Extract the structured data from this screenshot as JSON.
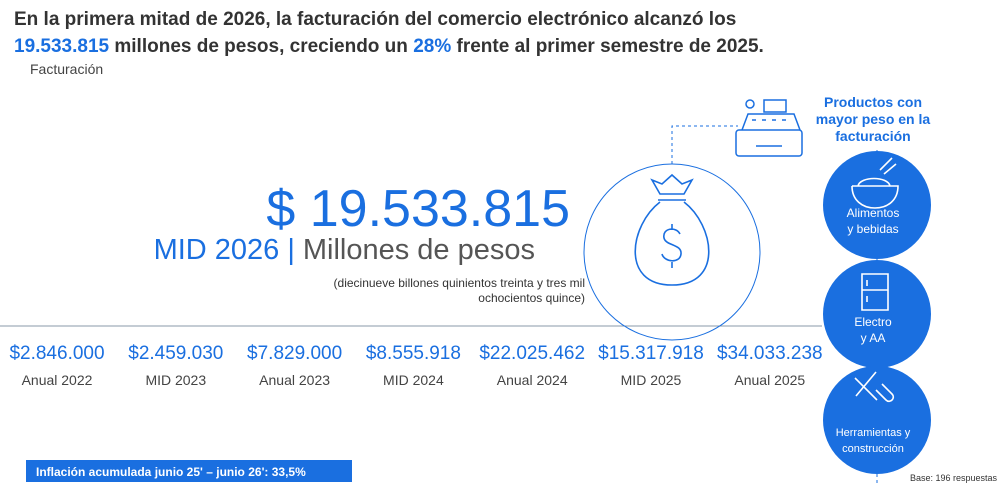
{
  "header": {
    "title_parts": [
      "En la primera mitad de 2026, la facturación del comercio electrónico alcanzó los",
      "19.533.815",
      " millones de pesos, creciendo un ",
      "28%",
      " frente al primer semestre de 2025."
    ],
    "subtitle": "Facturación"
  },
  "main": {
    "amount": "$ 19.533.815",
    "period": "MID 2026",
    "separator": "|",
    "unit": "Millones de pesos",
    "note_lines": [
      "(diecinueve billones quinientos treinta y tres mil",
      "ochocientos quince)"
    ]
  },
  "timeline": [
    {
      "value": "$2.846.000",
      "label": "Anual 2022"
    },
    {
      "value": "$2.459.030",
      "label": "MID 2023"
    },
    {
      "value": "$7.829.000",
      "label": "Anual 2023"
    },
    {
      "value": "$8.555.918",
      "label": "MID 2024"
    },
    {
      "value": "$22.025.462",
      "label": "Anual 2024"
    },
    {
      "value": "$15.317.918",
      "label": "MID 2025"
    },
    {
      "value": "$34.033.238",
      "label": "Anual 2025"
    }
  ],
  "products": {
    "title_lines": [
      "Productos con",
      "mayor peso en la",
      "facturación"
    ],
    "items": [
      [
        "Alimentos",
        "y bebidas"
      ],
      [
        "Electro",
        "y AA"
      ],
      [
        "Herramientas y",
        "construcción"
      ]
    ]
  },
  "footer": {
    "inflation": "Inflación acumulada junio 25' – junio 26': 33,5%",
    "base": "Base: 196 respuestas"
  }
}
